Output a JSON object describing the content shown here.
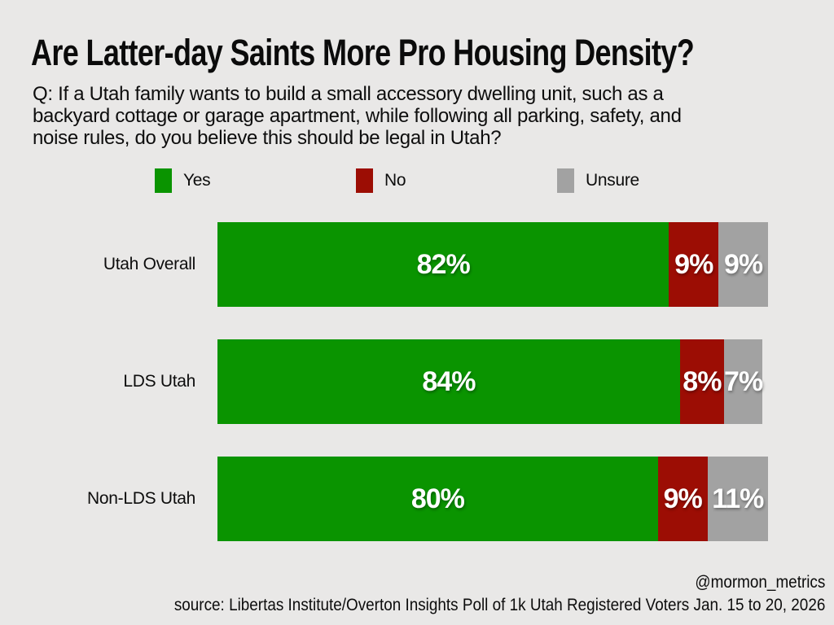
{
  "page": {
    "title": "Are Latter-day Saints More Pro Housing Density?",
    "question_lines": [
      "Q: If a Utah family wants to build a small accessory dwelling unit, such as a",
      "backyard cottage or garage apartment, while following all parking, safety, and",
      "noise rules, do you believe this should be legal in Utah?"
    ],
    "footer_handle": "@mormon_metrics",
    "footer_source": "source: Libertas Institute/Overton Insights Poll of 1k Utah Registered Voters Jan. 15 to 20, 2026"
  },
  "colors": {
    "background": "#e9e8e7",
    "text": "#0d0d0d",
    "bar_value_text": "#ffffff",
    "yes": "#0a9400",
    "no": "#9c0d04",
    "unsure": "#a2a2a2"
  },
  "chart_data": {
    "type": "bar",
    "variant": "horizontal-stacked",
    "title": "Are Latter-day Saints More Pro Housing Density?",
    "categories": [
      "Utah Overall",
      "LDS Utah",
      "Non-LDS Utah"
    ],
    "series": [
      {
        "name": "Yes",
        "color": "#0a9400",
        "values": [
          82,
          84,
          80
        ]
      },
      {
        "name": "No",
        "color": "#9c0d04",
        "values": [
          9,
          8,
          9
        ]
      },
      {
        "name": "Unsure",
        "color": "#a2a2a2",
        "values": [
          9,
          7,
          11
        ]
      }
    ],
    "value_suffix": "%",
    "xlim": [
      0,
      100
    ],
    "legend_position": "top",
    "grid": false,
    "data_labels": "inside-white-bold"
  }
}
